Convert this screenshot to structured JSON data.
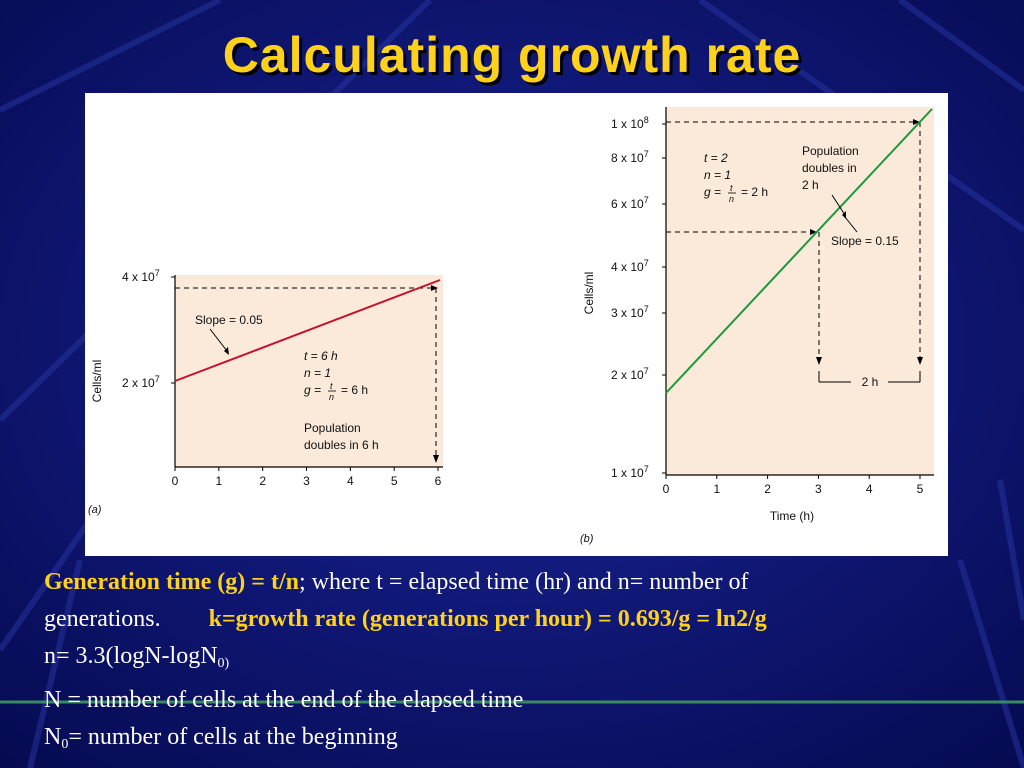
{
  "slide": {
    "title": "Calculating growth rate",
    "colors": {
      "background": "#0a0f6e",
      "title": "#ffd21a",
      "highlight": "#ffd21a",
      "body_text": "#ffffff",
      "plot_fill": "#fbe9d9",
      "line_a": "#c8102e",
      "line_b": "#1a9a3c"
    }
  },
  "text": {
    "line1_highlight": "Generation time (g) = t/n",
    "line1_rest": "; where t = elapsed time (hr) and n= number of",
    "line2_plain": "generations.",
    "line2_highlight": "k=growth rate (generations per hour) = 0.693/g = ln2/g",
    "line3_prefix": "n= 3.3(logN-logN",
    "line3_sub": "0",
    "line3_suffix": ")",
    "line4": "N = number of cells at the end of the elapsed time",
    "line5_main": "N",
    "line5_sub": "0",
    "line5_rest": "= number of cells at the beginning"
  },
  "chart_data": [
    {
      "type": "line",
      "panel_label": "(a)",
      "ylabel": "Cells/ml",
      "xlabel": "",
      "x_ticks": [
        "0",
        "1",
        "2",
        "3",
        "4",
        "5",
        "6"
      ],
      "y_ticks": [
        "2 x 10^7",
        "4 x 10^7"
      ],
      "xlim": [
        0,
        6
      ],
      "y_scale": "log",
      "series": [
        {
          "x": [
            0,
            6
          ],
          "y": [
            20000000,
            40000000
          ]
        }
      ],
      "annotations": {
        "slope": "Slope = 0.05",
        "t": "t = 6 h",
        "n": "n = 1",
        "g_prefix": "g =",
        "g_num": "t",
        "g_den": "n",
        "g_suffix": "= 6 h",
        "doubles_1": "Population",
        "doubles_2": "doubles in 6 h"
      }
    },
    {
      "type": "line",
      "panel_label": "(b)",
      "ylabel": "Cells/ml",
      "xlabel": "Time (h)",
      "x_ticks": [
        "0",
        "1",
        "2",
        "3",
        "4",
        "5"
      ],
      "y_ticks": [
        "1 x 10^7",
        "2 x 10^7",
        "3 x 10^7",
        "4 x 10^7",
        "6 x 10^7",
        "8 x 10^7",
        "1 x 10^8"
      ],
      "xlim": [
        0,
        5.2
      ],
      "ylim": [
        10000000,
        100000000
      ],
      "y_scale": "log",
      "series": [
        {
          "x": [
            0,
            5.2
          ],
          "y": [
            17000000,
            115000000
          ]
        }
      ],
      "annotations": {
        "t": "t = 2",
        "n": "n = 1",
        "g_prefix": "g =",
        "g_num": "t",
        "g_den": "n",
        "g_suffix": "= 2 h",
        "doubles_1": "Population",
        "doubles_2": "doubles in",
        "doubles_3": "2 h",
        "slope": "Slope = 0.15",
        "interval": "2 h"
      }
    }
  ]
}
